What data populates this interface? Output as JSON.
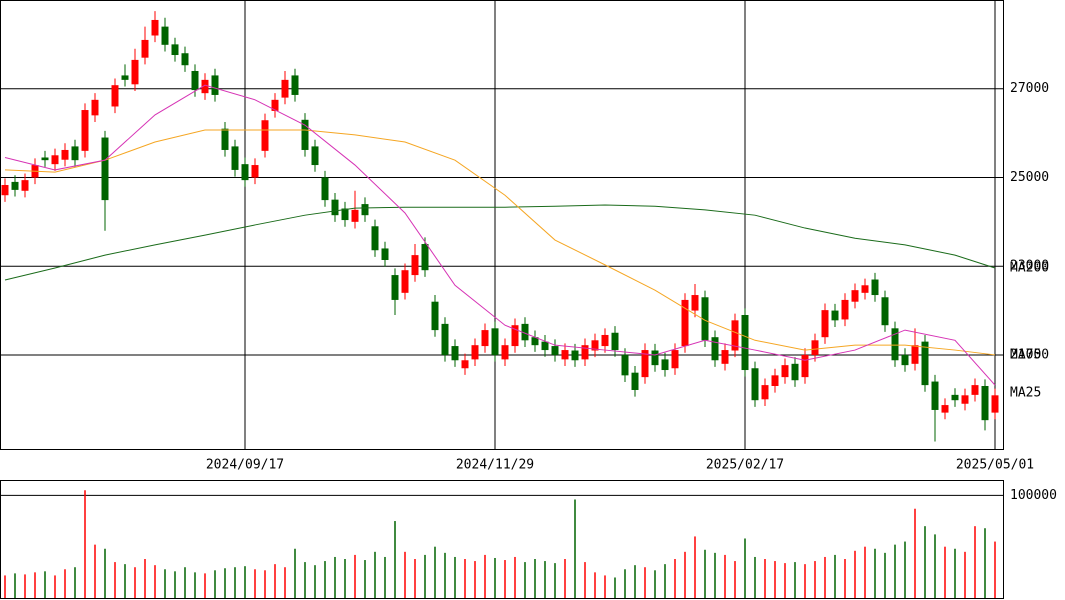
{
  "chart_data": {
    "type": "candlestick",
    "categories": [
      null,
      null,
      null,
      null,
      null,
      null,
      null,
      null,
      null,
      null,
      null,
      null,
      null,
      null,
      null,
      null,
      null,
      null,
      null,
      null,
      null,
      null,
      null,
      null,
      "2024/09/17",
      null,
      null,
      null,
      null,
      null,
      null,
      null,
      null,
      null,
      null,
      null,
      null,
      null,
      null,
      null,
      null,
      null,
      null,
      null,
      null,
      null,
      null,
      null,
      null,
      "2024/11/29",
      null,
      null,
      null,
      null,
      null,
      null,
      null,
      null,
      null,
      null,
      null,
      null,
      null,
      null,
      null,
      null,
      null,
      null,
      null,
      null,
      null,
      null,
      null,
      null,
      "2025/02/17",
      null,
      null,
      null,
      null,
      null,
      null,
      null,
      null,
      null,
      null,
      null,
      null,
      null,
      null,
      null,
      null,
      null,
      null,
      null,
      null,
      null,
      null,
      null,
      null,
      "2025/05/01"
    ],
    "open": [
      24600,
      24900,
      24700,
      25000,
      25450,
      25300,
      25400,
      25700,
      25600,
      26400,
      25900,
      26600,
      27300,
      27100,
      27700,
      28200,
      28400,
      28000,
      27800,
      27400,
      26900,
      27300,
      26100,
      25700,
      25300,
      25000,
      25600,
      26500,
      26800,
      27300,
      26300,
      25700,
      25000,
      24500,
      24300,
      24000,
      24400,
      23900,
      23400,
      22800,
      22400,
      22800,
      23500,
      22200,
      21700,
      21200,
      20700,
      20900,
      21200,
      21600,
      20900,
      21200,
      21700,
      21400,
      21300,
      21200,
      20900,
      21100,
      20900,
      21100,
      21200,
      21500,
      21000,
      20600,
      20500,
      21100,
      20900,
      20700,
      21200,
      22000,
      22300,
      21400,
      20800,
      21100,
      21900,
      20700,
      20000,
      20300,
      20500,
      20800,
      20500,
      21000,
      21400,
      22000,
      21800,
      22200,
      22400,
      22700,
      22300,
      21600,
      21000,
      20800,
      21300,
      20400,
      19700,
      20100,
      19900,
      20100,
      20300,
      19700
    ],
    "high": [
      24980,
      25050,
      25090,
      25430,
      25600,
      25650,
      25770,
      25850,
      26670,
      26900,
      26050,
      27230,
      27550,
      27900,
      28400,
      28750,
      28600,
      28150,
      27950,
      27550,
      27350,
      27450,
      26250,
      25850,
      25450,
      25430,
      26440,
      26900,
      27400,
      27450,
      26450,
      25850,
      25150,
      24650,
      24450,
      24700,
      24550,
      24050,
      23550,
      22950,
      23060,
      23500,
      23650,
      22350,
      21850,
      21350,
      21030,
      21370,
      21710,
      21750,
      21370,
      21820,
      21850,
      21550,
      21450,
      21350,
      21260,
      21250,
      21370,
      21480,
      21600,
      21650,
      21150,
      20750,
      21260,
      21250,
      21050,
      21260,
      22390,
      22600,
      22450,
      21550,
      21260,
      21930,
      22050,
      20850,
      20470,
      20690,
      20920,
      20950,
      21150,
      21480,
      22160,
      22150,
      22390,
      22610,
      22720,
      22850,
      22450,
      21750,
      21150,
      21600,
      21450,
      20550,
      20020,
      20250,
      20240,
      20470,
      20450,
      20240
    ],
    "low": [
      24450,
      24570,
      24550,
      24850,
      25240,
      25150,
      25250,
      25240,
      25450,
      26250,
      23800,
      26450,
      27050,
      26950,
      27550,
      28050,
      27840,
      27610,
      27380,
      26820,
      26750,
      26710,
      25470,
      25020,
      24790,
      24850,
      25450,
      26350,
      26650,
      26710,
      25470,
      25130,
      24340,
      24000,
      23890,
      23850,
      24000,
      23210,
      22990,
      21900,
      22250,
      22650,
      22760,
      21410,
      20850,
      20730,
      20550,
      20750,
      21050,
      20850,
      20750,
      21050,
      21180,
      21070,
      20960,
      20850,
      20750,
      20730,
      20750,
      20950,
      21050,
      20960,
      20390,
      20060,
      20350,
      20620,
      20510,
      20550,
      21050,
      21850,
      21180,
      20730,
      20650,
      20950,
      20510,
      19830,
      19850,
      20150,
      20350,
      20280,
      20350,
      20850,
      21250,
      21630,
      21650,
      22050,
      22250,
      22200,
      21520,
      20730,
      20620,
      20650,
      20170,
      19050,
      19550,
      19830,
      19750,
      19950,
      19300,
      19550
    ],
    "close": [
      24830,
      24720,
      24940,
      25280,
      25390,
      25500,
      25620,
      25390,
      26520,
      26750,
      24490,
      27080,
      27200,
      27650,
      28100,
      28550,
      27990,
      27760,
      27530,
      26970,
      27200,
      26860,
      25620,
      25170,
      24940,
      25280,
      26290,
      26750,
      27200,
      26860,
      25620,
      25280,
      24490,
      24150,
      24040,
      24270,
      24150,
      23360,
      23140,
      22240,
      22910,
      23250,
      22910,
      21560,
      21000,
      20880,
      20880,
      21220,
      21560,
      21000,
      21220,
      21670,
      21330,
      21220,
      21110,
      21000,
      21110,
      20880,
      21220,
      21330,
      21450,
      21110,
      20540,
      20210,
      21110,
      20770,
      20660,
      21110,
      22240,
      22350,
      21330,
      20880,
      21110,
      21780,
      20660,
      19980,
      20320,
      20540,
      20770,
      20430,
      21000,
      21330,
      22010,
      21780,
      22240,
      22460,
      22570,
      22350,
      21670,
      20880,
      20770,
      21220,
      20320,
      19760,
      19870,
      19980,
      20090,
      20320,
      19530,
      20090
    ],
    "volume": [
      22000,
      24000,
      23000,
      25000,
      26000,
      22000,
      28000,
      30000,
      105000,
      52000,
      48000,
      35000,
      33000,
      30000,
      38000,
      32000,
      28000,
      26000,
      30000,
      25000,
      24000,
      27000,
      29000,
      30000,
      31000,
      28000,
      27000,
      33000,
      30000,
      48000,
      35000,
      32000,
      36000,
      40000,
      38000,
      42000,
      37000,
      45000,
      40000,
      75000,
      45000,
      38000,
      42000,
      50000,
      44000,
      40000,
      38000,
      36000,
      42000,
      39000,
      37000,
      40000,
      35000,
      38000,
      36000,
      34000,
      38000,
      96000,
      35000,
      25000,
      22000,
      20000,
      28000,
      32000,
      30000,
      27000,
      33000,
      38000,
      45000,
      60000,
      47000,
      44000,
      42000,
      36000,
      58000,
      40000,
      38000,
      36000,
      34000,
      35000,
      33000,
      36000,
      40000,
      42000,
      38000,
      46000,
      50000,
      48000,
      44000,
      52000,
      55000,
      87000,
      70000,
      62000,
      50000,
      48000,
      45000,
      70000,
      68000,
      55000
    ],
    "up_color": "#ff0000",
    "down_color": "#006400",
    "series": [
      {
        "name": "MA200",
        "color": "#1a6b1a",
        "x": [
          0,
          5,
          10,
          15,
          20,
          25,
          30,
          35,
          40,
          45,
          50,
          55,
          60,
          65,
          70,
          75,
          80,
          85,
          90,
          95,
          99
        ],
        "values": [
          22690,
          22960,
          23250,
          23480,
          23700,
          23930,
          24150,
          24310,
          24330,
          24330,
          24330,
          24350,
          24380,
          24350,
          24270,
          24150,
          23860,
          23630,
          23480,
          23250,
          22960
        ]
      },
      {
        "name": "MA75",
        "color": "#f5a623",
        "x": [
          0,
          5,
          10,
          15,
          20,
          25,
          30,
          35,
          40,
          45,
          50,
          55,
          60,
          65,
          70,
          75,
          80,
          85,
          90,
          95,
          99
        ],
        "values": [
          25170,
          25120,
          25390,
          25800,
          26070,
          26070,
          26070,
          25960,
          25800,
          25390,
          24600,
          23590,
          23030,
          22460,
          21780,
          21330,
          21110,
          21220,
          21220,
          21110,
          21000
        ]
      },
      {
        "name": "MA25",
        "color": "#d633b5",
        "x": [
          0,
          5,
          10,
          15,
          20,
          25,
          30,
          35,
          40,
          45,
          50,
          55,
          60,
          65,
          70,
          75,
          80,
          85,
          90,
          95,
          99
        ],
        "values": [
          25450,
          25170,
          25390,
          26410,
          27080,
          26750,
          26180,
          25280,
          24200,
          22570,
          21670,
          21220,
          21110,
          21000,
          21330,
          21110,
          20880,
          21110,
          21560,
          21330,
          20320
        ]
      }
    ],
    "ylim": [
      18880,
      29000
    ],
    "yticks": [
      21000,
      23000,
      25000,
      27000
    ],
    "volume_ylim": [
      0,
      115000
    ],
    "volume_yticks": [
      100000
    ],
    "grid": true
  }
}
